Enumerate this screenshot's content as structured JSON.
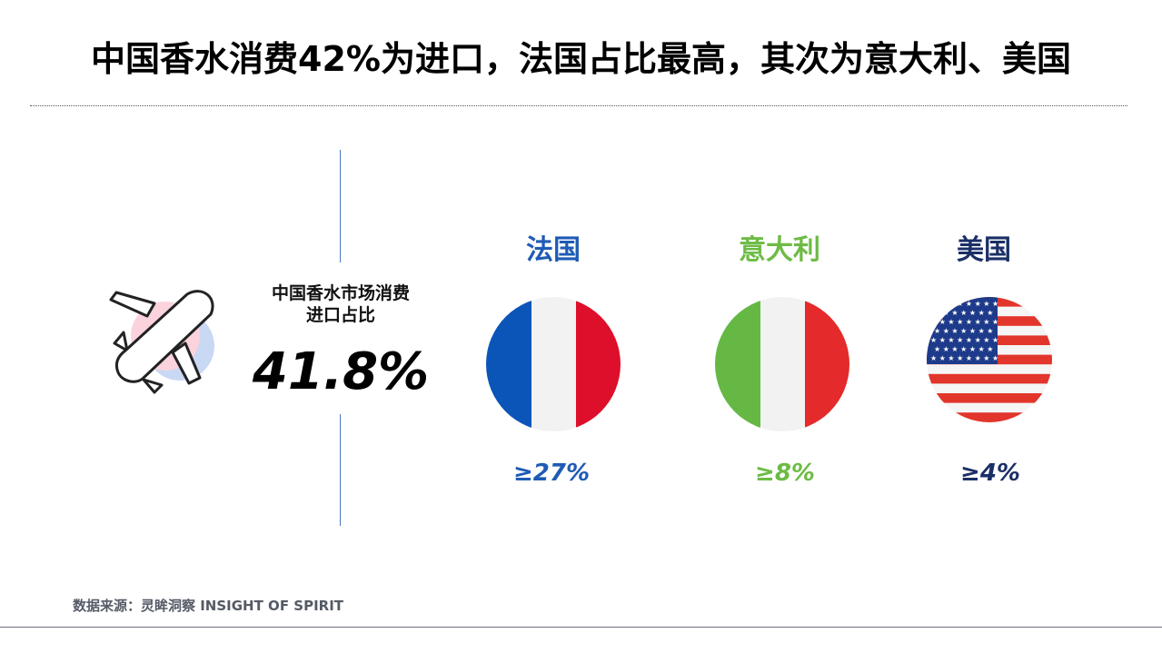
{
  "title": "中国香水消费42%为进口，法国占比最高，其次为意大利、美国",
  "metric": {
    "label_line1": "中国香水市场消费",
    "label_line2": "进口占比",
    "value": "41.8%",
    "icon": "airplane-icon"
  },
  "countries": [
    {
      "name": "法国",
      "share": "≥27%",
      "color": "#1f5bb5",
      "flag_icon": "france-flag-icon"
    },
    {
      "name": "意大利",
      "share": "≥8%",
      "color": "#6dbb45",
      "flag_icon": "italy-flag-icon"
    },
    {
      "name": "美国",
      "share": "≥4%",
      "color": "#1b2f66",
      "flag_icon": "usa-flag-icon"
    }
  ],
  "source": "数据来源：灵眸洞察 INSIGHT OF SPIRIT"
}
